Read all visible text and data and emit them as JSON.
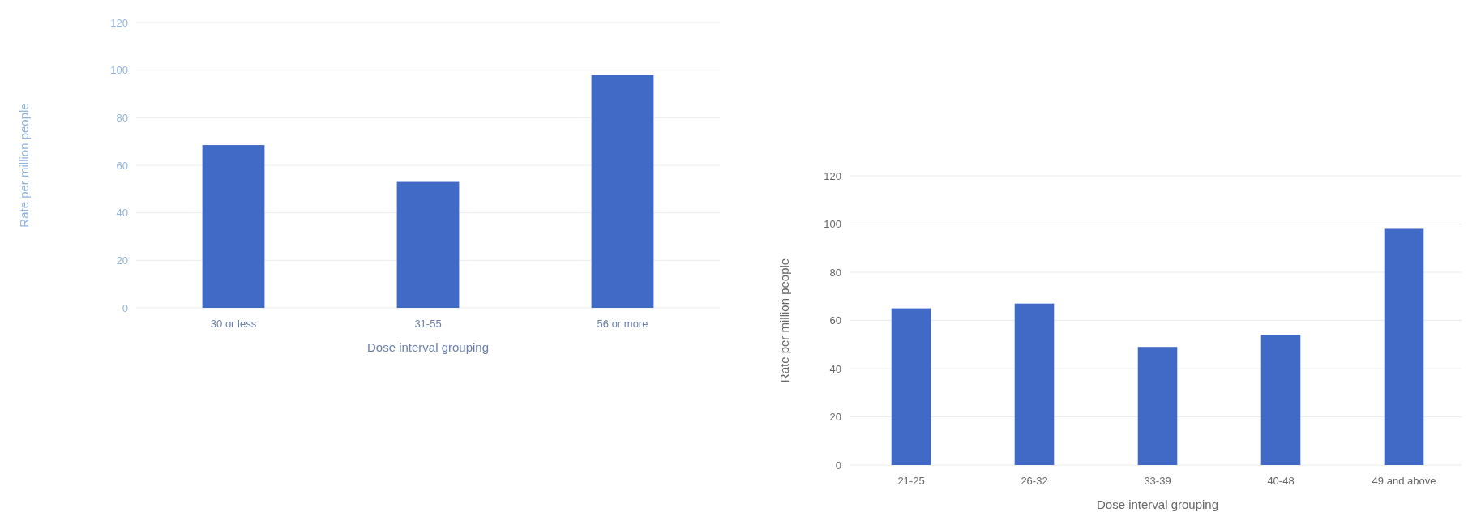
{
  "chart_data": [
    {
      "type": "bar",
      "categories": [
        "30 or less",
        "31-55",
        "56 or more"
      ],
      "values": [
        68.5,
        53,
        98
      ],
      "color": "#4169c6",
      "xlabel": "Dose interval grouping",
      "ylabel": "Rate per million people",
      "ylim": [
        0,
        120
      ],
      "yticks": [
        0,
        20,
        40,
        60,
        80,
        100,
        120
      ],
      "grid": "y"
    },
    {
      "type": "bar",
      "categories": [
        "21-25",
        "26-32",
        "33-39",
        "40-48",
        "49 and above"
      ],
      "values": [
        65,
        67,
        49,
        54,
        98
      ],
      "color": "#4169c6",
      "xlabel": "Dose interval grouping",
      "ylabel": "Rate per million people",
      "ylim": [
        0,
        120
      ],
      "yticks": [
        0,
        20,
        40,
        60,
        80,
        100,
        120
      ],
      "grid": "y"
    }
  ]
}
